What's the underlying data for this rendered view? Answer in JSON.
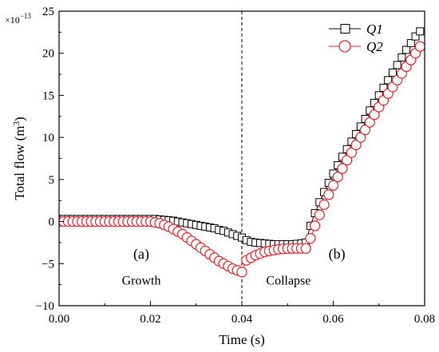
{
  "chart_data": {
    "type": "scatter",
    "title": "",
    "xlabel": "Time (s)",
    "ylabel_main": "Total flow (m",
    "ylabel_sup": "3",
    "ylabel_tail": ")",
    "multiplier_base": "×10",
    "multiplier_exp": "−13",
    "xlim": [
      0.0,
      0.08
    ],
    "ylim": [
      -10,
      25
    ],
    "x_ticks": [
      0.0,
      0.02,
      0.04,
      0.06,
      0.08
    ],
    "x_tick_labels": [
      "0.00",
      "0.02",
      "0.04",
      "0.06",
      "0.08"
    ],
    "y_ticks": [
      -10,
      -5,
      0,
      5,
      10,
      15,
      20,
      25
    ],
    "y_tick_labels": [
      "−10",
      "−5",
      "0",
      "5",
      "10",
      "15",
      "20",
      "25"
    ],
    "grid": false,
    "legend_position": "top-right",
    "divider_x": 0.04,
    "annotations": [
      {
        "text": "(a)",
        "x": 0.018,
        "y": -4.4,
        "size": "big"
      },
      {
        "text": "Growth",
        "x": 0.018,
        "y": -7.5,
        "size": "normal"
      },
      {
        "text": "(b)",
        "x": 0.0608,
        "y": -4.4,
        "size": "big"
      },
      {
        "text": "Collapse",
        "x": 0.0502,
        "y": -7.5,
        "size": "normal"
      }
    ],
    "series": [
      {
        "name": "Q1",
        "marker": "square",
        "color": "#000000",
        "x": [
          0.0,
          0.001,
          0.002,
          0.003,
          0.004,
          0.005,
          0.006,
          0.007,
          0.008,
          0.009,
          0.01,
          0.011,
          0.012,
          0.013,
          0.014,
          0.015,
          0.016,
          0.017,
          0.018,
          0.019,
          0.02,
          0.021,
          0.022,
          0.023,
          0.024,
          0.025,
          0.026,
          0.027,
          0.028,
          0.029,
          0.03,
          0.031,
          0.032,
          0.033,
          0.034,
          0.035,
          0.036,
          0.037,
          0.038,
          0.039,
          0.04,
          0.041,
          0.042,
          0.043,
          0.044,
          0.045,
          0.046,
          0.047,
          0.048,
          0.049,
          0.05,
          0.051,
          0.052,
          0.053,
          0.054,
          0.055,
          0.056,
          0.057,
          0.058,
          0.059,
          0.06,
          0.061,
          0.062,
          0.063,
          0.064,
          0.065,
          0.066,
          0.067,
          0.068,
          0.069,
          0.07,
          0.071,
          0.072,
          0.073,
          0.074,
          0.075,
          0.076,
          0.077,
          0.078,
          0.079
        ],
        "y": [
          0.3,
          0.3,
          0.3,
          0.3,
          0.3,
          0.3,
          0.3,
          0.3,
          0.3,
          0.3,
          0.3,
          0.3,
          0.3,
          0.3,
          0.3,
          0.3,
          0.3,
          0.3,
          0.3,
          0.3,
          0.3,
          0.3,
          0.25,
          0.2,
          0.15,
          0.1,
          0.0,
          -0.1,
          -0.2,
          -0.3,
          -0.4,
          -0.5,
          -0.6,
          -0.7,
          -0.8,
          -1.0,
          -1.1,
          -1.3,
          -1.5,
          -1.7,
          -1.9,
          -2.2,
          -2.4,
          -2.5,
          -2.55,
          -2.6,
          -2.65,
          -2.7,
          -2.7,
          -2.7,
          -2.7,
          -2.7,
          -2.65,
          -2.6,
          -2.5,
          -0.5,
          1.0,
          2.3,
          3.5,
          4.6,
          5.7,
          6.7,
          7.7,
          8.6,
          9.5,
          10.4,
          11.3,
          12.2,
          13.2,
          14.1,
          15.0,
          15.9,
          16.8,
          17.7,
          18.6,
          19.5,
          20.4,
          21.2,
          22.0,
          22.6
        ]
      },
      {
        "name": "Q2",
        "marker": "circle",
        "color": "#e8202a",
        "x": [
          0.0,
          0.001,
          0.002,
          0.003,
          0.004,
          0.005,
          0.006,
          0.007,
          0.008,
          0.009,
          0.01,
          0.011,
          0.012,
          0.013,
          0.014,
          0.015,
          0.016,
          0.017,
          0.018,
          0.019,
          0.02,
          0.021,
          0.022,
          0.023,
          0.024,
          0.025,
          0.026,
          0.027,
          0.028,
          0.029,
          0.03,
          0.031,
          0.032,
          0.033,
          0.034,
          0.035,
          0.036,
          0.037,
          0.038,
          0.039,
          0.04,
          0.041,
          0.042,
          0.043,
          0.044,
          0.045,
          0.046,
          0.047,
          0.048,
          0.049,
          0.05,
          0.051,
          0.052,
          0.053,
          0.054,
          0.055,
          0.056,
          0.057,
          0.058,
          0.059,
          0.06,
          0.061,
          0.062,
          0.063,
          0.064,
          0.065,
          0.066,
          0.067,
          0.068,
          0.069,
          0.07,
          0.071,
          0.072,
          0.073,
          0.074,
          0.075,
          0.076,
          0.077,
          0.078,
          0.079
        ],
        "y": [
          0.0,
          0.0,
          0.0,
          0.0,
          0.0,
          0.0,
          0.0,
          0.0,
          0.0,
          0.0,
          0.0,
          0.0,
          0.0,
          0.0,
          0.0,
          0.0,
          0.0,
          0.0,
          0.0,
          0.0,
          0.0,
          -0.1,
          -0.2,
          -0.4,
          -0.6,
          -0.9,
          -1.2,
          -1.5,
          -1.9,
          -2.3,
          -2.7,
          -3.1,
          -3.5,
          -3.9,
          -4.3,
          -4.7,
          -5.0,
          -5.3,
          -5.6,
          -5.8,
          -6.0,
          -4.6,
          -4.3,
          -4.0,
          -3.8,
          -3.6,
          -3.5,
          -3.4,
          -3.3,
          -3.25,
          -3.2,
          -3.2,
          -3.2,
          -3.2,
          -3.2,
          -2.0,
          -0.5,
          0.8,
          2.0,
          3.2,
          4.3,
          5.3,
          6.3,
          7.3,
          8.2,
          9.1,
          10.0,
          10.9,
          11.8,
          12.7,
          13.6,
          14.4,
          15.2,
          16.0,
          16.8,
          17.6,
          18.4,
          19.2,
          20.0,
          20.8
        ]
      }
    ]
  }
}
